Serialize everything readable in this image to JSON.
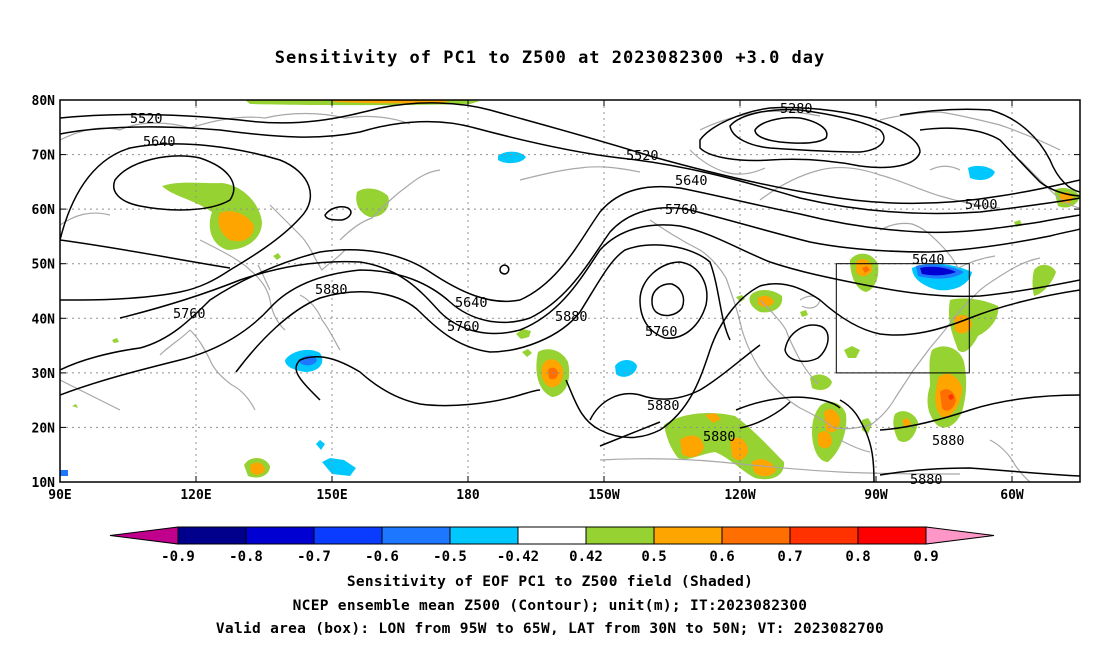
{
  "title": "Sensitivity of PC1 to Z500 at 2023082300 +3.0 day",
  "map": {
    "lat_labels": [
      "80N",
      "70N",
      "60N",
      "50N",
      "40N",
      "30N",
      "20N",
      "10N"
    ],
    "lon_labels": [
      "90E",
      "120E",
      "150E",
      "180",
      "150W",
      "120W",
      "90W",
      "60W"
    ],
    "contour_labels": [
      "5520",
      "5640",
      "5280",
      "5520",
      "5640",
      "5760",
      "5400",
      "5640",
      "5880",
      "5640",
      "5760",
      "5880",
      "5760",
      "5760",
      "5880",
      "5880",
      "5880",
      "5880"
    ],
    "contour_interval_m": 120,
    "coast_color": "#a8a8a8",
    "contour_color": "#000000",
    "grid_style": "dotted"
  },
  "colorbar": {
    "labels": [
      "-0.9",
      "-0.8",
      "-0.7",
      "-0.6",
      "-0.5",
      "-0.42",
      "0.42",
      "0.5",
      "0.6",
      "0.7",
      "0.8",
      "0.9"
    ],
    "colors": [
      "#c0008c",
      "#00008c",
      "#0000d2",
      "#0a3cff",
      "#1e78ff",
      "#00c8ff",
      "#ffffff",
      "#96d232",
      "#ffa500",
      "#ff6e00",
      "#ff3200",
      "#ff0000",
      "#ff96c8"
    ]
  },
  "footer": {
    "line1": "Sensitivity of EOF PC1 to Z500 field (Shaded)",
    "line2": "NCEP ensemble mean Z500 (Contour); unit(m); IT:2023082300",
    "line3": "Valid area (box): LON from 95W to 65W, LAT from 30N to 50N; VT: 2023082700"
  }
}
